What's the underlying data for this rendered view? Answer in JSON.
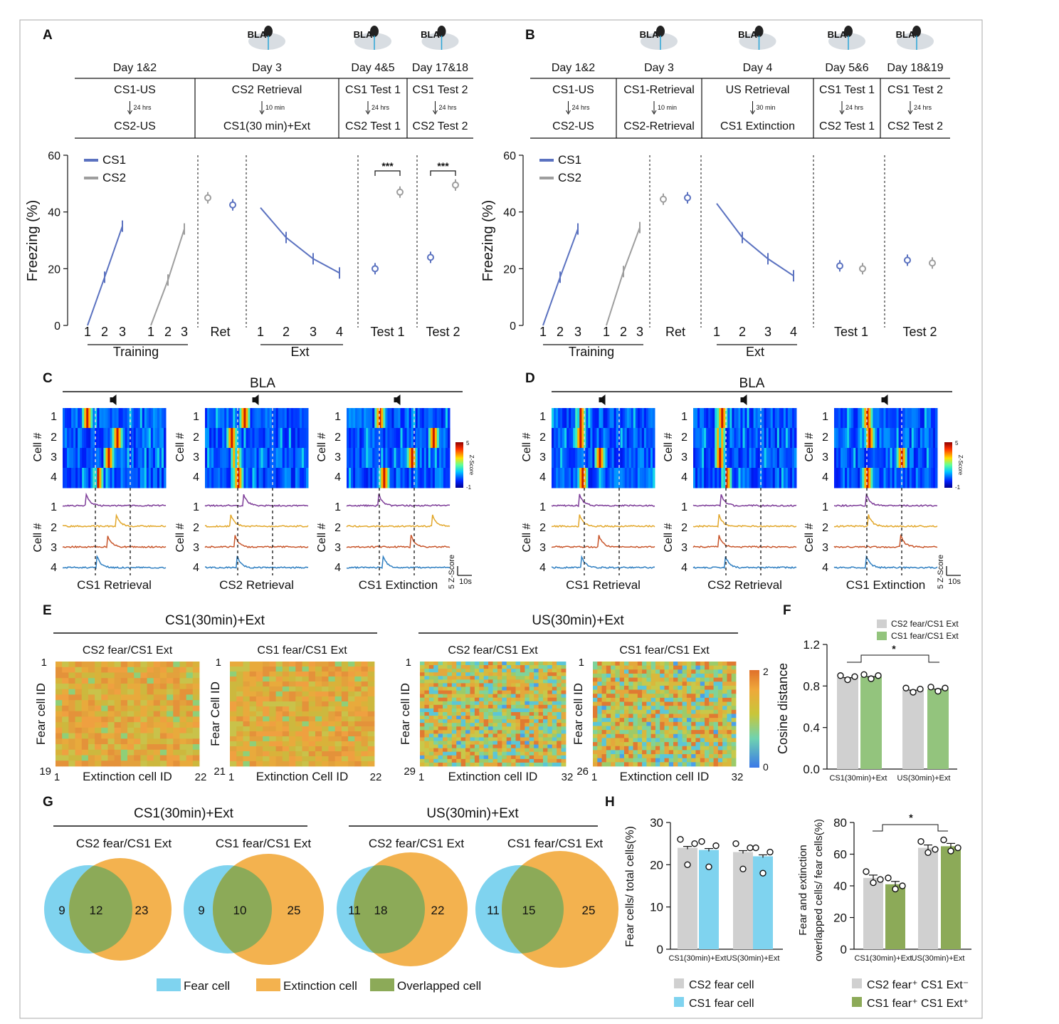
{
  "panel_letters": {
    "A": "A",
    "B": "B",
    "C": "C",
    "D": "D",
    "E": "E",
    "F": "F",
    "G": "G",
    "H": "H"
  },
  "colors": {
    "cs1": "#5b72c0",
    "cs2": "#9e9e9e",
    "fear": "#7fd3ef",
    "extinction": "#f3b24f",
    "overlap": "#8caa58",
    "bar_grey": "#d0d0d0",
    "bar_green": "#93c47d",
    "bar_blue": "#7fd3ef"
  },
  "brain_label": "BLA",
  "panelA": {
    "days": [
      "Day 1&2",
      "Day 3",
      "Day 4&5",
      "Day 17&18"
    ],
    "top": [
      "CS1-US",
      "CS2 Retrieval",
      "CS1 Test 1",
      "CS1 Test 2"
    ],
    "intervals": [
      "24 hrs",
      "10 min",
      "24 hrs",
      "24 hrs"
    ],
    "bottom": [
      "CS2-US",
      "CS1(30 min)+Ext",
      "CS2 Test 1",
      "CS2 Test 2"
    ]
  },
  "panelB": {
    "days": [
      "Day 1&2",
      "Day 3",
      "Day 4",
      "Day 5&6",
      "Day 18&19"
    ],
    "top": [
      "CS1-US",
      "CS1-Retrieval",
      "US Retrieval",
      "CS1 Test 1",
      "CS1 Test 2"
    ],
    "intervals": [
      "24 hrs",
      "10 min",
      "30 min",
      "24 hrs",
      "24 hrs"
    ],
    "bottom": [
      "CS2-US",
      "CS2-Retrieval",
      "CS1 Extinction",
      "CS2 Test 1",
      "CS2 Test 2"
    ]
  },
  "freezing": {
    "ylabel": "Freezing (%)",
    "yticks": [
      "0",
      "20",
      "40",
      "60"
    ],
    "legend": [
      "CS1",
      "CS2"
    ],
    "train_ticks": [
      "1",
      "2",
      "3"
    ],
    "ext_ticks": [
      "1",
      "2",
      "3",
      "4"
    ],
    "group_labels": [
      "Training",
      "Ret",
      "Ext",
      "Test 1",
      "Test 2"
    ],
    "sig": "***"
  },
  "chart_data": [
    {
      "type": "line",
      "panel": "A",
      "ylabel": "Freezing (%)",
      "ylim": [
        0,
        60
      ],
      "series": [
        {
          "name": "CS1",
          "training": [
            0,
            17,
            35
          ],
          "ret": 42.5,
          "ext": [
            41.5,
            31,
            23.5,
            18.5
          ],
          "test1": 20,
          "test2": 24
        },
        {
          "name": "CS2",
          "training": [
            0,
            16,
            34
          ],
          "ret": 45,
          "test1": 47,
          "test2": 49.5
        }
      ]
    },
    {
      "type": "line",
      "panel": "B",
      "ylabel": "Freezing (%)",
      "ylim": [
        0,
        60
      ],
      "series": [
        {
          "name": "CS1",
          "training": [
            0,
            17,
            34
          ],
          "ret": 45,
          "ext": [
            43,
            31,
            23.5,
            17.5
          ],
          "test1": 21,
          "test2": 23
        },
        {
          "name": "CS2",
          "training": [
            0,
            19,
            34.5
          ],
          "ret": 44.5,
          "test1": 20,
          "test2": 22
        }
      ]
    },
    {
      "type": "bar",
      "panel": "F",
      "ylabel": "Cosine distance",
      "ylim": [
        0,
        1.2
      ],
      "categories": [
        "CS1(30min)+Ext",
        "US(30min)+Ext"
      ],
      "series": [
        {
          "name": "CS2 fear/CS1 Ext",
          "values": [
            0.88,
            0.76
          ]
        },
        {
          "name": "CS1 fear/CS1 Ext",
          "values": [
            0.89,
            0.77
          ]
        }
      ]
    },
    {
      "type": "bar",
      "panel": "H-left",
      "ylabel": "Fear cells/ total cells(%)",
      "ylim": [
        0,
        30
      ],
      "categories": [
        "CS1(30min)+Ext",
        "US(30min)+Ext"
      ],
      "series": [
        {
          "name": "CS2 fear cell",
          "values": [
            24,
            23
          ]
        },
        {
          "name": "CS1 fear cell",
          "values": [
            23.5,
            22
          ]
        }
      ]
    },
    {
      "type": "bar",
      "panel": "H-right",
      "ylim": [
        0,
        80
      ],
      "categories": [
        "CS1(30min)+Ext",
        "US(30min)+Ext"
      ],
      "series": [
        {
          "name": "CS2 fear⁺ CS1 Ext⁻",
          "values": [
            45,
            64
          ]
        },
        {
          "name": "CS1 fear⁺ CS1 Ext⁺",
          "values": [
            41,
            65
          ]
        }
      ]
    }
  ],
  "panelC": {
    "header": "BLA",
    "titles": [
      "CS1 Retrieval",
      "CS2 Retrieval",
      "CS1 Extinction"
    ]
  },
  "panelD": {
    "header": "BLA",
    "titles": [
      "CS1 Retrieval",
      "CS2 Retrieval",
      "CS1 Extinction"
    ]
  },
  "cell_axis": "Cell #",
  "cell_nums": [
    "1",
    "2",
    "3",
    "4"
  ],
  "zscore": {
    "label": "Z-Score",
    "max": "5",
    "min": "-1",
    "scale": "5 Z-Score",
    "time": "10s"
  },
  "panelE": {
    "group1": "CS1(30min)+Ext",
    "group2": "US(30min)+Ext",
    "maps": [
      {
        "title": "CS2 fear/CS1 Ext",
        "ylabel": "Fear cell ID",
        "xlabel": "Extinction cell ID",
        "ymax": "19",
        "xmax": "22"
      },
      {
        "title": "CS1 fear/CS1 Ext",
        "ylabel": "Fear Cell ID",
        "xlabel": "Extinction Cell ID",
        "ymax": "21",
        "xmax": "22"
      },
      {
        "title": "CS2 fear/CS1 Ext",
        "ylabel": "Fear cell ID",
        "xlabel": "Extinction cell ID",
        "ymax": "29",
        "xmax": "32"
      },
      {
        "title": "CS1 fear/CS1 Ext",
        "ylabel": "Fear cell ID",
        "xlabel": "Extinction cell ID",
        "ymax": "26",
        "xmax": "32"
      }
    ],
    "one": "1",
    "cbar_max": "2",
    "cbar_min": "0"
  },
  "panelF": {
    "ylabel": "Cosine distance",
    "yticks": [
      "0.0",
      "0.4",
      "0.8",
      "1.2"
    ],
    "legend": [
      "CS2 fear/CS1 Ext",
      "CS1 fear/CS1 Ext"
    ],
    "xlabels": [
      "CS1(30min)+Ext",
      "US(30min)+Ext"
    ],
    "sig": "*"
  },
  "panelG": {
    "group1": "CS1(30min)+Ext",
    "group2": "US(30min)+Ext",
    "venns": [
      {
        "title": "CS2 fear/CS1 Ext",
        "fear": "9",
        "overlap": "12",
        "ext": "23"
      },
      {
        "title": "CS1 fear/CS1 Ext",
        "fear": "9",
        "overlap": "10",
        "ext": "25"
      },
      {
        "title": "CS2 fear/CS1 Ext",
        "fear": "11",
        "overlap": "18",
        "ext": "22"
      },
      {
        "title": "CS1 fear/CS1 Ext",
        "fear": "11",
        "overlap": "15",
        "ext": "25"
      }
    ],
    "legend": [
      "Fear cell",
      "Extinction cell",
      "Overlapped cell"
    ]
  },
  "panelH": {
    "left": {
      "ylabel": "Fear cells/ total cells(%)",
      "yticks": [
        "0",
        "10",
        "20",
        "30"
      ],
      "xlabels": [
        "CS1(30min)+Ext",
        "US(30min)+Ext"
      ],
      "legend": [
        "CS2 fear cell",
        "CS1 fear cell"
      ]
    },
    "right": {
      "ylabel1": "Fear and extinction",
      "ylabel2": "overlapped cells/ fear cells(%)",
      "yticks": [
        "0",
        "20",
        "40",
        "60",
        "80"
      ],
      "xlabels": [
        "CS1(30min)+Ext",
        "US(30min)+Ext"
      ],
      "legend": [
        "CS2 fear⁺ CS1 Ext⁻",
        "CS1 fear⁺ CS1 Ext⁺"
      ],
      "sig": "*"
    }
  }
}
